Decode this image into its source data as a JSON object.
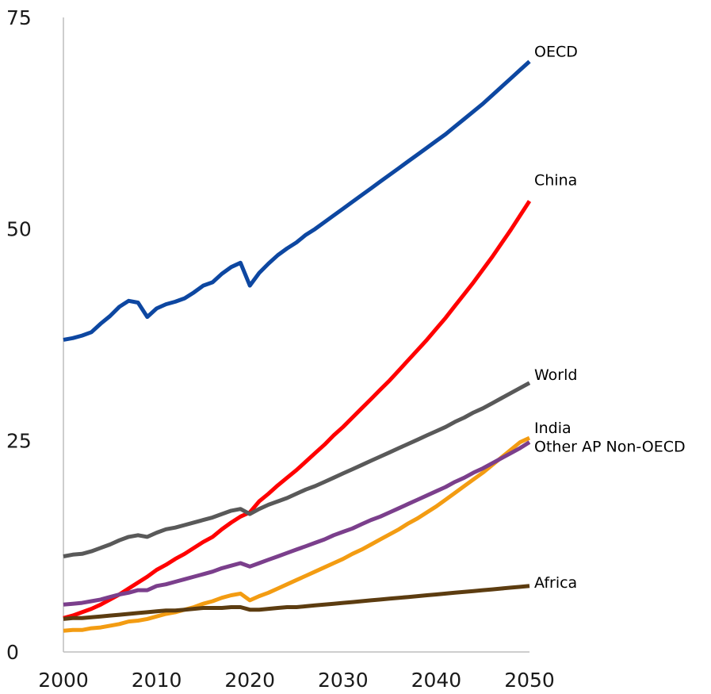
{
  "chart_data": {
    "type": "line",
    "title": "",
    "xlabel": "",
    "ylabel": "",
    "xlim": [
      2000,
      2050
    ],
    "ylim": [
      0,
      75
    ],
    "xticks": [
      2000,
      2010,
      2020,
      2030,
      2040,
      2050
    ],
    "yticks": [
      0,
      25,
      50,
      75
    ],
    "grid": false,
    "legend": "direct labels at line ends",
    "x": [
      2000,
      2001,
      2002,
      2003,
      2004,
      2005,
      2006,
      2007,
      2008,
      2009,
      2010,
      2011,
      2012,
      2013,
      2014,
      2015,
      2016,
      2017,
      2018,
      2019,
      2020,
      2021,
      2022,
      2023,
      2024,
      2025,
      2026,
      2027,
      2028,
      2029,
      2030,
      2031,
      2032,
      2033,
      2034,
      2035,
      2036,
      2037,
      2038,
      2039,
      2040,
      2041,
      2042,
      2043,
      2044,
      2045,
      2046,
      2047,
      2048,
      2049,
      2050
    ],
    "series": [
      {
        "name": "OECD",
        "color": "#0d47a1",
        "values": [
          36.9,
          37.1,
          37.4,
          37.8,
          38.8,
          39.7,
          40.8,
          41.5,
          41.3,
          39.6,
          40.6,
          41.1,
          41.4,
          41.8,
          42.5,
          43.3,
          43.7,
          44.7,
          45.5,
          46.0,
          43.3,
          44.8,
          45.9,
          46.9,
          47.7,
          48.4,
          49.3,
          50.0,
          50.8,
          51.6,
          52.4,
          53.2,
          54.0,
          54.8,
          55.6,
          56.4,
          57.2,
          58.0,
          58.8,
          59.6,
          60.4,
          61.2,
          62.1,
          63.0,
          63.9,
          64.8,
          65.8,
          66.8,
          67.8,
          68.8,
          69.8
        ]
      },
      {
        "name": "China",
        "color": "#ff0000",
        "values": [
          4.0,
          4.3,
          4.7,
          5.1,
          5.6,
          6.2,
          6.8,
          7.5,
          8.2,
          8.9,
          9.7,
          10.3,
          11.0,
          11.6,
          12.3,
          13.0,
          13.6,
          14.5,
          15.3,
          16.0,
          16.5,
          17.8,
          18.7,
          19.7,
          20.6,
          21.5,
          22.5,
          23.5,
          24.5,
          25.6,
          26.6,
          27.7,
          28.8,
          29.9,
          31.0,
          32.1,
          33.3,
          34.5,
          35.7,
          36.9,
          38.2,
          39.5,
          40.9,
          42.3,
          43.7,
          45.2,
          46.7,
          48.3,
          49.9,
          51.6,
          53.3
        ]
      },
      {
        "name": "World",
        "color": "#595959",
        "values": [
          11.3,
          11.5,
          11.6,
          11.9,
          12.3,
          12.7,
          13.2,
          13.6,
          13.8,
          13.6,
          14.1,
          14.5,
          14.7,
          15.0,
          15.3,
          15.6,
          15.9,
          16.3,
          16.7,
          16.9,
          16.3,
          16.9,
          17.4,
          17.8,
          18.2,
          18.7,
          19.2,
          19.6,
          20.1,
          20.6,
          21.1,
          21.6,
          22.1,
          22.6,
          23.1,
          23.6,
          24.1,
          24.6,
          25.1,
          25.6,
          26.1,
          26.6,
          27.2,
          27.7,
          28.3,
          28.8,
          29.4,
          30.0,
          30.6,
          31.2,
          31.8
        ]
      },
      {
        "name": "India",
        "color": "#f39c12",
        "values": [
          2.5,
          2.6,
          2.6,
          2.8,
          2.9,
          3.1,
          3.3,
          3.6,
          3.7,
          3.9,
          4.2,
          4.5,
          4.7,
          5.0,
          5.3,
          5.7,
          6.0,
          6.4,
          6.7,
          6.9,
          6.1,
          6.6,
          7.0,
          7.5,
          8.0,
          8.5,
          9.0,
          9.5,
          10.0,
          10.5,
          11.0,
          11.6,
          12.1,
          12.7,
          13.3,
          13.9,
          14.5,
          15.2,
          15.8,
          16.5,
          17.2,
          18.0,
          18.8,
          19.6,
          20.4,
          21.2,
          22.1,
          23.0,
          23.9,
          24.8,
          25.3
        ]
      },
      {
        "name": "Other AP Non-OECD",
        "color": "#7b3f8c",
        "values": [
          5.6,
          5.7,
          5.8,
          6.0,
          6.2,
          6.5,
          6.8,
          7.0,
          7.3,
          7.3,
          7.8,
          8.0,
          8.3,
          8.6,
          8.9,
          9.2,
          9.5,
          9.9,
          10.2,
          10.5,
          10.1,
          10.5,
          10.9,
          11.3,
          11.7,
          12.1,
          12.5,
          12.9,
          13.3,
          13.8,
          14.2,
          14.6,
          15.1,
          15.6,
          16.0,
          16.5,
          17.0,
          17.5,
          18.0,
          18.5,
          19.0,
          19.5,
          20.1,
          20.6,
          21.2,
          21.7,
          22.3,
          22.9,
          23.5,
          24.1,
          24.8
        ]
      },
      {
        "name": "Africa",
        "color": "#5c3c10",
        "values": [
          3.9,
          4.0,
          4.0,
          4.1,
          4.2,
          4.3,
          4.4,
          4.5,
          4.6,
          4.7,
          4.8,
          4.9,
          4.9,
          5.0,
          5.1,
          5.2,
          5.2,
          5.2,
          5.3,
          5.3,
          5.0,
          5.0,
          5.1,
          5.2,
          5.3,
          5.3,
          5.4,
          5.5,
          5.6,
          5.7,
          5.8,
          5.9,
          6.0,
          6.1,
          6.2,
          6.3,
          6.4,
          6.5,
          6.6,
          6.7,
          6.8,
          6.9,
          7.0,
          7.1,
          7.2,
          7.3,
          7.4,
          7.5,
          7.6,
          7.7,
          7.8
        ]
      }
    ]
  }
}
